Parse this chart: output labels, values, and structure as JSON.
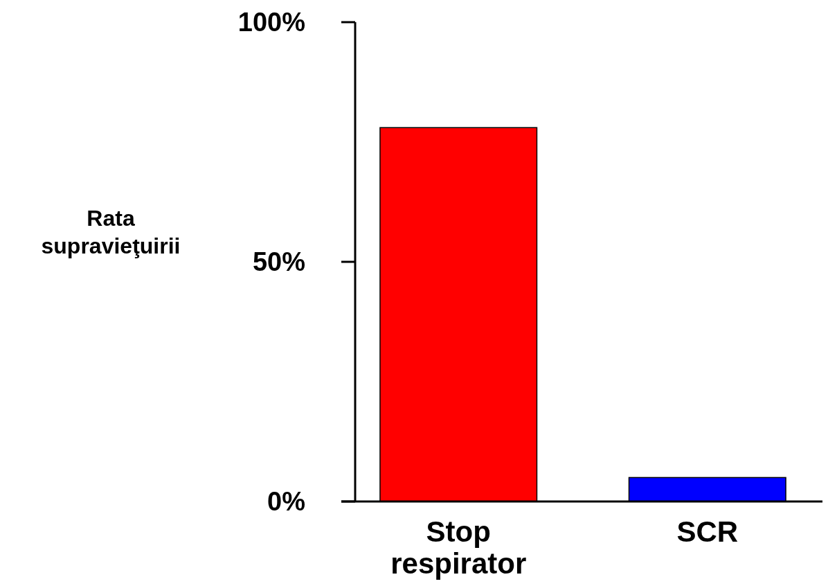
{
  "chart_data": {
    "type": "bar",
    "ylabel": "Rata supravieţuirii",
    "categories": [
      "Stop respirator",
      "SCR"
    ],
    "values": [
      78,
      5
    ],
    "colors": [
      "#ff0000",
      "#0000ff"
    ],
    "ylim": [
      0,
      100
    ],
    "yticks": [
      {
        "value": 0,
        "label": "0%"
      },
      {
        "value": 50,
        "label": "50%"
      },
      {
        "value": 100,
        "label": "100%"
      }
    ],
    "grid": false
  }
}
